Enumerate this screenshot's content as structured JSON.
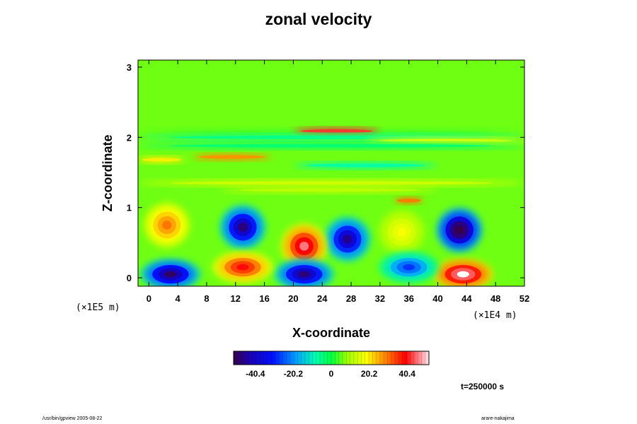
{
  "chart_data": {
    "type": "heatmap",
    "title": "zonal velocity",
    "xlabel": "X-coordinate",
    "ylabel": "Z-coordinate",
    "x_scale_note": "(×1E4 m)",
    "z_scale_note": "(×1E5 m)",
    "xlim": [
      -1.5,
      52
    ],
    "ylim": [
      -0.12,
      3.1
    ],
    "x_ticks": [
      0,
      4,
      8,
      12,
      16,
      20,
      24,
      28,
      32,
      36,
      40,
      44,
      48,
      52
    ],
    "y_ticks": [
      0,
      1,
      2,
      3
    ],
    "colorbar": {
      "range": [
        -52,
        52
      ],
      "ticks": [
        -40.4,
        -20.2,
        0,
        20.2,
        40.4
      ],
      "tick_labels": [
        "-40.4",
        "-20.2",
        "0",
        "20.2",
        "40.4"
      ]
    },
    "features": [
      {
        "kind": "band",
        "z": 2.08,
        "x": [
          -1.5,
          52
        ],
        "value": 4
      },
      {
        "kind": "band",
        "z": 2.09,
        "x": [
          20,
          32
        ],
        "value": 42
      },
      {
        "kind": "band",
        "z": 2.0,
        "x": [
          -1.5,
          52
        ],
        "value": -6
      },
      {
        "kind": "band",
        "z": 1.95,
        "x": [
          30,
          52
        ],
        "value": 16
      },
      {
        "kind": "band",
        "z": 1.88,
        "x": [
          -1.5,
          52
        ],
        "value": -4
      },
      {
        "kind": "band",
        "z": 1.72,
        "x": [
          6,
          17
        ],
        "value": 28
      },
      {
        "kind": "band",
        "z": 1.68,
        "x": [
          -1.5,
          5
        ],
        "value": 20
      },
      {
        "kind": "band",
        "z": 1.6,
        "x": [
          20,
          40
        ],
        "value": -8
      },
      {
        "kind": "band",
        "z": 1.35,
        "x": [
          -1.5,
          52
        ],
        "value": 14
      },
      {
        "kind": "band",
        "z": 1.25,
        "x": [
          10,
          40
        ],
        "value": 12
      },
      {
        "kind": "band",
        "z": 1.1,
        "x": [
          34,
          38
        ],
        "value": 30
      },
      {
        "kind": "blob",
        "x": 13,
        "z": 0.72,
        "value": -48
      },
      {
        "kind": "blob",
        "x": 27.5,
        "z": 0.55,
        "value": -46
      },
      {
        "kind": "blob",
        "x": 43,
        "z": 0.68,
        "value": -58
      },
      {
        "kind": "blob",
        "x": 2.5,
        "z": 0.75,
        "value": 30
      },
      {
        "kind": "blob",
        "x": 21.5,
        "z": 0.45,
        "value": 46
      },
      {
        "kind": "blob",
        "x": 35,
        "z": 0.65,
        "value": 18
      },
      {
        "kind": "blob",
        "x": 3,
        "z": 0.05,
        "value": -50
      },
      {
        "kind": "blob",
        "x": 21.5,
        "z": 0.05,
        "value": -48
      },
      {
        "kind": "blob",
        "x": 43.5,
        "z": 0.05,
        "value": 52
      },
      {
        "kind": "blob",
        "x": 13,
        "z": 0.15,
        "value": 40
      },
      {
        "kind": "blob",
        "x": 36,
        "z": 0.15,
        "value": -28
      }
    ]
  },
  "time_label": "t=250000 s",
  "footer_left": "/usr/bin/gpview 2005-08-22",
  "footer_right": "arare-nakajima"
}
